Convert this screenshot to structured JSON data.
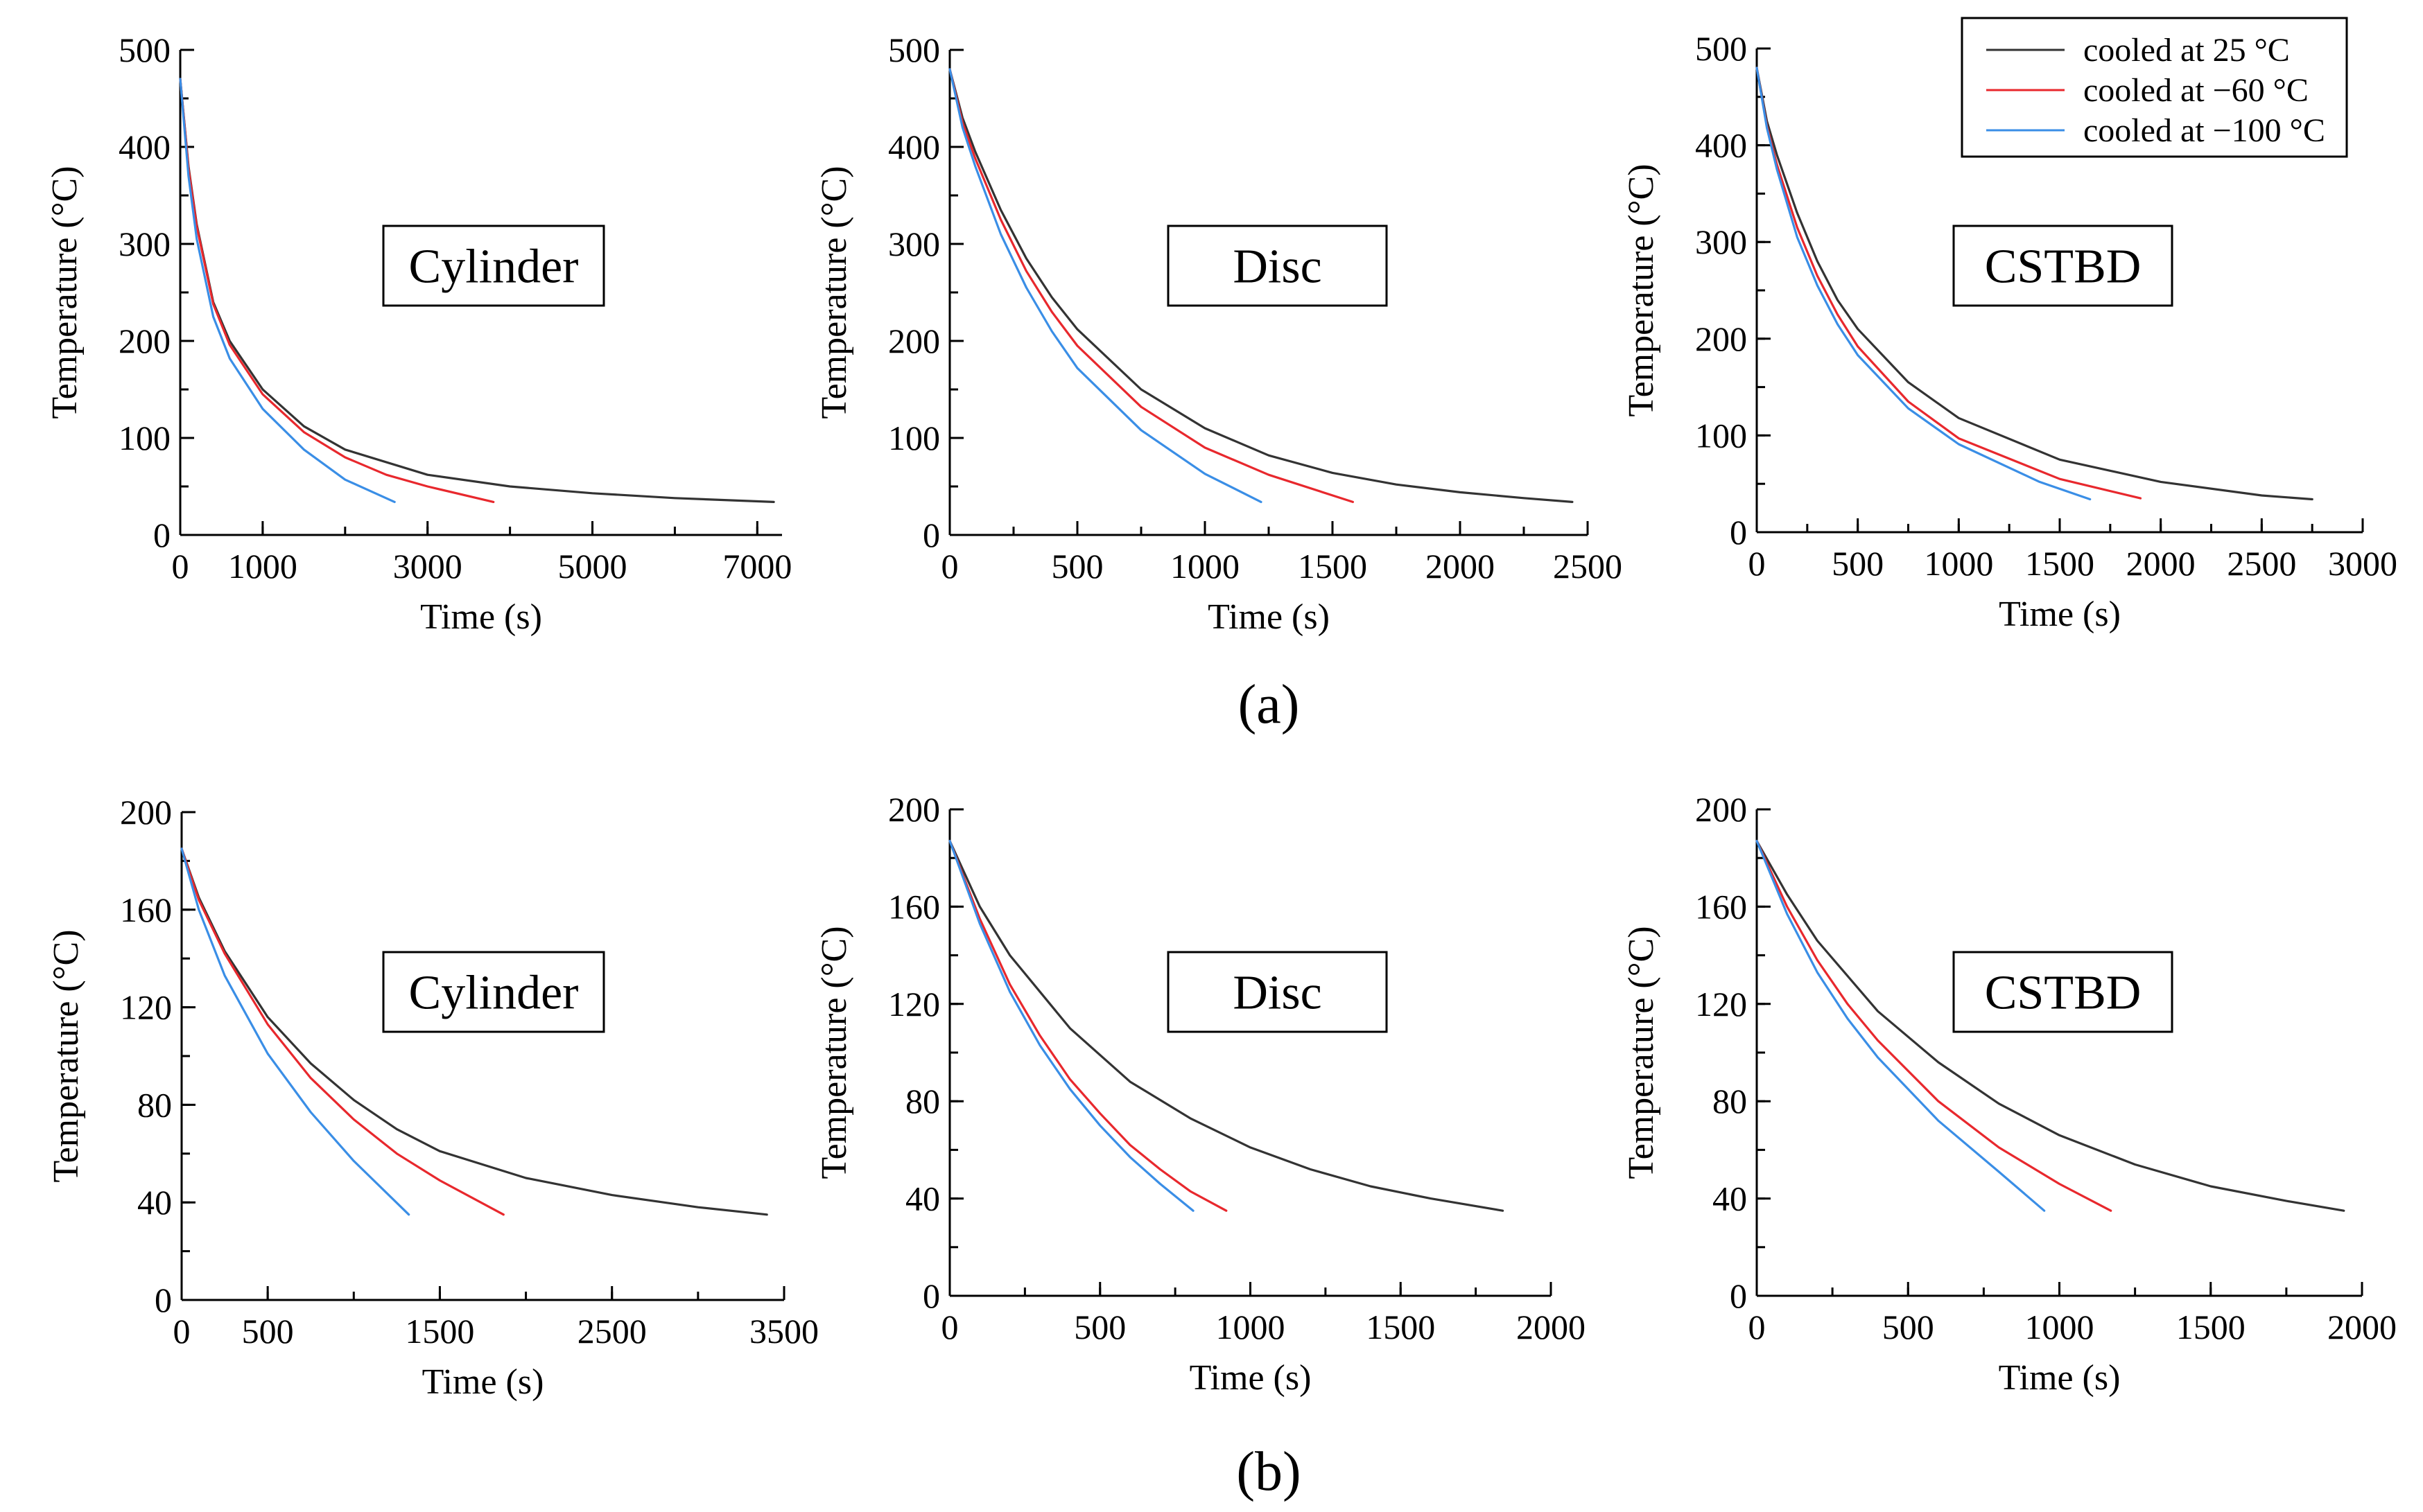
{
  "legend": {
    "entries": [
      {
        "key": "25",
        "label": "cooled at  25 °C",
        "color": "#333333"
      },
      {
        "key": "m60",
        "label": "cooled at −60 °C",
        "color": "#e8282d"
      },
      {
        "key": "m100",
        "label": "cooled at −100 °C",
        "color": "#3a8ee6"
      }
    ]
  },
  "captions": {
    "row_a": "(a)",
    "row_b": "(b)"
  },
  "chart_data": [
    {
      "id": "a-cylinder",
      "type": "line",
      "row": "(a)",
      "shape": "Cylinder",
      "xlabel": "Time (s)",
      "ylabel": "Temperature (°C)",
      "xlim": [
        0,
        7300
      ],
      "ylim": [
        0,
        500
      ],
      "xticks": [
        0,
        1000,
        3000,
        5000,
        7000
      ],
      "yticks": [
        0,
        100,
        200,
        300,
        400,
        500
      ],
      "series": [
        {
          "name": "cooled at 25 °C",
          "color": "#333333",
          "x": [
            0,
            100,
            200,
            400,
            600,
            1000,
            1500,
            2000,
            3000,
            4000,
            5000,
            6000,
            7200
          ],
          "y": [
            470,
            380,
            320,
            240,
            200,
            150,
            112,
            88,
            62,
            50,
            43,
            38,
            34
          ]
        },
        {
          "name": "cooled at -60 °C",
          "color": "#e8282d",
          "x": [
            0,
            100,
            200,
            400,
            600,
            1000,
            1500,
            2000,
            2500,
            3000,
            3800
          ],
          "y": [
            470,
            378,
            318,
            238,
            196,
            145,
            106,
            80,
            62,
            50,
            34
          ]
        },
        {
          "name": "cooled at -100 °C",
          "color": "#3a8ee6",
          "x": [
            0,
            100,
            200,
            400,
            600,
            1000,
            1500,
            2000,
            2600
          ],
          "y": [
            470,
            370,
            305,
            225,
            182,
            130,
            88,
            57,
            34
          ]
        }
      ]
    },
    {
      "id": "a-disc",
      "type": "line",
      "row": "(a)",
      "shape": "Disc",
      "xlabel": "Time (s)",
      "ylabel": "Temperature (°C)",
      "xlim": [
        0,
        2500
      ],
      "ylim": [
        0,
        500
      ],
      "xticks": [
        0,
        500,
        1000,
        1500,
        2000,
        2500
      ],
      "yticks": [
        0,
        100,
        200,
        300,
        400,
        500
      ],
      "series": [
        {
          "name": "cooled at 25 °C",
          "color": "#333333",
          "x": [
            0,
            50,
            100,
            200,
            300,
            400,
            500,
            750,
            1000,
            1250,
            1500,
            1750,
            2000,
            2250,
            2440
          ],
          "y": [
            480,
            430,
            395,
            335,
            285,
            245,
            212,
            150,
            110,
            82,
            64,
            52,
            44,
            38,
            34
          ]
        },
        {
          "name": "cooled at -60 °C",
          "color": "#e8282d",
          "x": [
            0,
            50,
            100,
            200,
            300,
            400,
            500,
            750,
            1000,
            1250,
            1580
          ],
          "y": [
            480,
            425,
            388,
            325,
            272,
            230,
            195,
            132,
            90,
            62,
            34
          ]
        },
        {
          "name": "cooled at -100 °C",
          "color": "#3a8ee6",
          "x": [
            0,
            50,
            100,
            200,
            300,
            400,
            500,
            750,
            1000,
            1220
          ],
          "y": [
            480,
            420,
            380,
            310,
            255,
            210,
            172,
            108,
            63,
            34
          ]
        }
      ]
    },
    {
      "id": "a-cstbd",
      "type": "line",
      "row": "(a)",
      "shape": "CSTBD",
      "xlabel": "Time (s)",
      "ylabel": "Temperature (°C)",
      "xlim": [
        0,
        3000
      ],
      "ylim": [
        0,
        500
      ],
      "xticks": [
        0,
        500,
        1000,
        1500,
        2000,
        2500,
        3000
      ],
      "yticks": [
        0,
        100,
        200,
        300,
        400,
        500
      ],
      "series": [
        {
          "name": "cooled at 25 °C",
          "color": "#333333",
          "x": [
            0,
            50,
            100,
            200,
            300,
            400,
            500,
            750,
            1000,
            1500,
            2000,
            2500,
            2750
          ],
          "y": [
            480,
            425,
            390,
            330,
            280,
            240,
            210,
            155,
            118,
            75,
            52,
            38,
            34
          ]
        },
        {
          "name": "cooled at -60 °C",
          "color": "#e8282d",
          "x": [
            0,
            50,
            100,
            200,
            300,
            400,
            500,
            750,
            1000,
            1500,
            1900
          ],
          "y": [
            480,
            420,
            380,
            315,
            265,
            225,
            192,
            135,
            97,
            55,
            35
          ]
        },
        {
          "name": "cooled at -100 °C",
          "color": "#3a8ee6",
          "x": [
            0,
            50,
            100,
            200,
            300,
            400,
            500,
            750,
            1000,
            1400,
            1650
          ],
          "y": [
            480,
            418,
            375,
            305,
            255,
            215,
            183,
            128,
            91,
            52,
            34
          ]
        }
      ]
    },
    {
      "id": "b-cylinder",
      "type": "line",
      "row": "(b)",
      "shape": "Cylinder",
      "xlabel": "Time (s)",
      "ylabel": "Temperature (°C)",
      "xlim": [
        0,
        3500
      ],
      "ylim": [
        0,
        200
      ],
      "xticks": [
        0,
        500,
        1500,
        2500,
        3500
      ],
      "yticks": [
        0,
        40,
        80,
        120,
        160,
        200
      ],
      "series": [
        {
          "name": "cooled at 25 °C",
          "color": "#333333",
          "x": [
            0,
            100,
            250,
            500,
            750,
            1000,
            1250,
            1500,
            2000,
            2500,
            3000,
            3400
          ],
          "y": [
            185,
            165,
            143,
            116,
            97,
            82,
            70,
            61,
            50,
            43,
            38,
            35
          ]
        },
        {
          "name": "cooled at -60 °C",
          "color": "#e8282d",
          "x": [
            0,
            100,
            250,
            500,
            750,
            1000,
            1250,
            1500,
            1870
          ],
          "y": [
            185,
            164,
            142,
            113,
            91,
            74,
            60,
            49,
            35
          ]
        },
        {
          "name": "cooled at -100 °C",
          "color": "#3a8ee6",
          "x": [
            0,
            100,
            250,
            500,
            750,
            1000,
            1320
          ],
          "y": [
            185,
            160,
            133,
            101,
            77,
            57,
            35
          ]
        }
      ]
    },
    {
      "id": "b-disc",
      "type": "line",
      "row": "(b)",
      "shape": "Disc",
      "xlabel": "Time (s)",
      "ylabel": "Temperature (°C)",
      "xlim": [
        0,
        2000
      ],
      "ylim": [
        0,
        200
      ],
      "xticks": [
        0,
        500,
        1000,
        1500,
        2000
      ],
      "yticks": [
        0,
        40,
        80,
        120,
        160,
        200
      ],
      "series": [
        {
          "name": "cooled at 25 °C",
          "color": "#333333",
          "x": [
            0,
            100,
            200,
            400,
            600,
            800,
            1000,
            1200,
            1400,
            1600,
            1840
          ],
          "y": [
            187,
            160,
            140,
            110,
            88,
            73,
            61,
            52,
            45,
            40,
            35
          ]
        },
        {
          "name": "cooled at -60 °C",
          "color": "#e8282d",
          "x": [
            0,
            100,
            200,
            300,
            400,
            500,
            600,
            700,
            800,
            920
          ],
          "y": [
            187,
            155,
            128,
            107,
            89,
            75,
            62,
            52,
            43,
            35
          ]
        },
        {
          "name": "cooled at -100 °C",
          "color": "#3a8ee6",
          "x": [
            0,
            100,
            200,
            300,
            400,
            500,
            600,
            700,
            810
          ],
          "y": [
            187,
            153,
            125,
            103,
            85,
            70,
            57,
            46,
            35
          ]
        }
      ]
    },
    {
      "id": "b-cstbd",
      "type": "line",
      "row": "(b)",
      "shape": "CSTBD",
      "xlabel": "Time (s)",
      "ylabel": "Temperature (°C)",
      "xlim": [
        0,
        2000
      ],
      "ylim": [
        0,
        200
      ],
      "xticks": [
        0,
        500,
        1000,
        1500,
        2000
      ],
      "yticks": [
        0,
        40,
        80,
        120,
        160,
        200
      ],
      "series": [
        {
          "name": "cooled at 25 °C",
          "color": "#333333",
          "x": [
            0,
            100,
            200,
            400,
            600,
            800,
            1000,
            1250,
            1500,
            1750,
            1940
          ],
          "y": [
            187,
            165,
            146,
            117,
            96,
            79,
            66,
            54,
            45,
            39,
            35
          ]
        },
        {
          "name": "cooled at -60 °C",
          "color": "#e8282d",
          "x": [
            0,
            100,
            200,
            300,
            400,
            600,
            800,
            1000,
            1170
          ],
          "y": [
            187,
            160,
            138,
            120,
            105,
            80,
            61,
            46,
            35
          ]
        },
        {
          "name": "cooled at -100 °C",
          "color": "#3a8ee6",
          "x": [
            0,
            100,
            200,
            300,
            400,
            600,
            800,
            950
          ],
          "y": [
            187,
            157,
            133,
            114,
            98,
            72,
            51,
            35
          ]
        }
      ]
    }
  ]
}
